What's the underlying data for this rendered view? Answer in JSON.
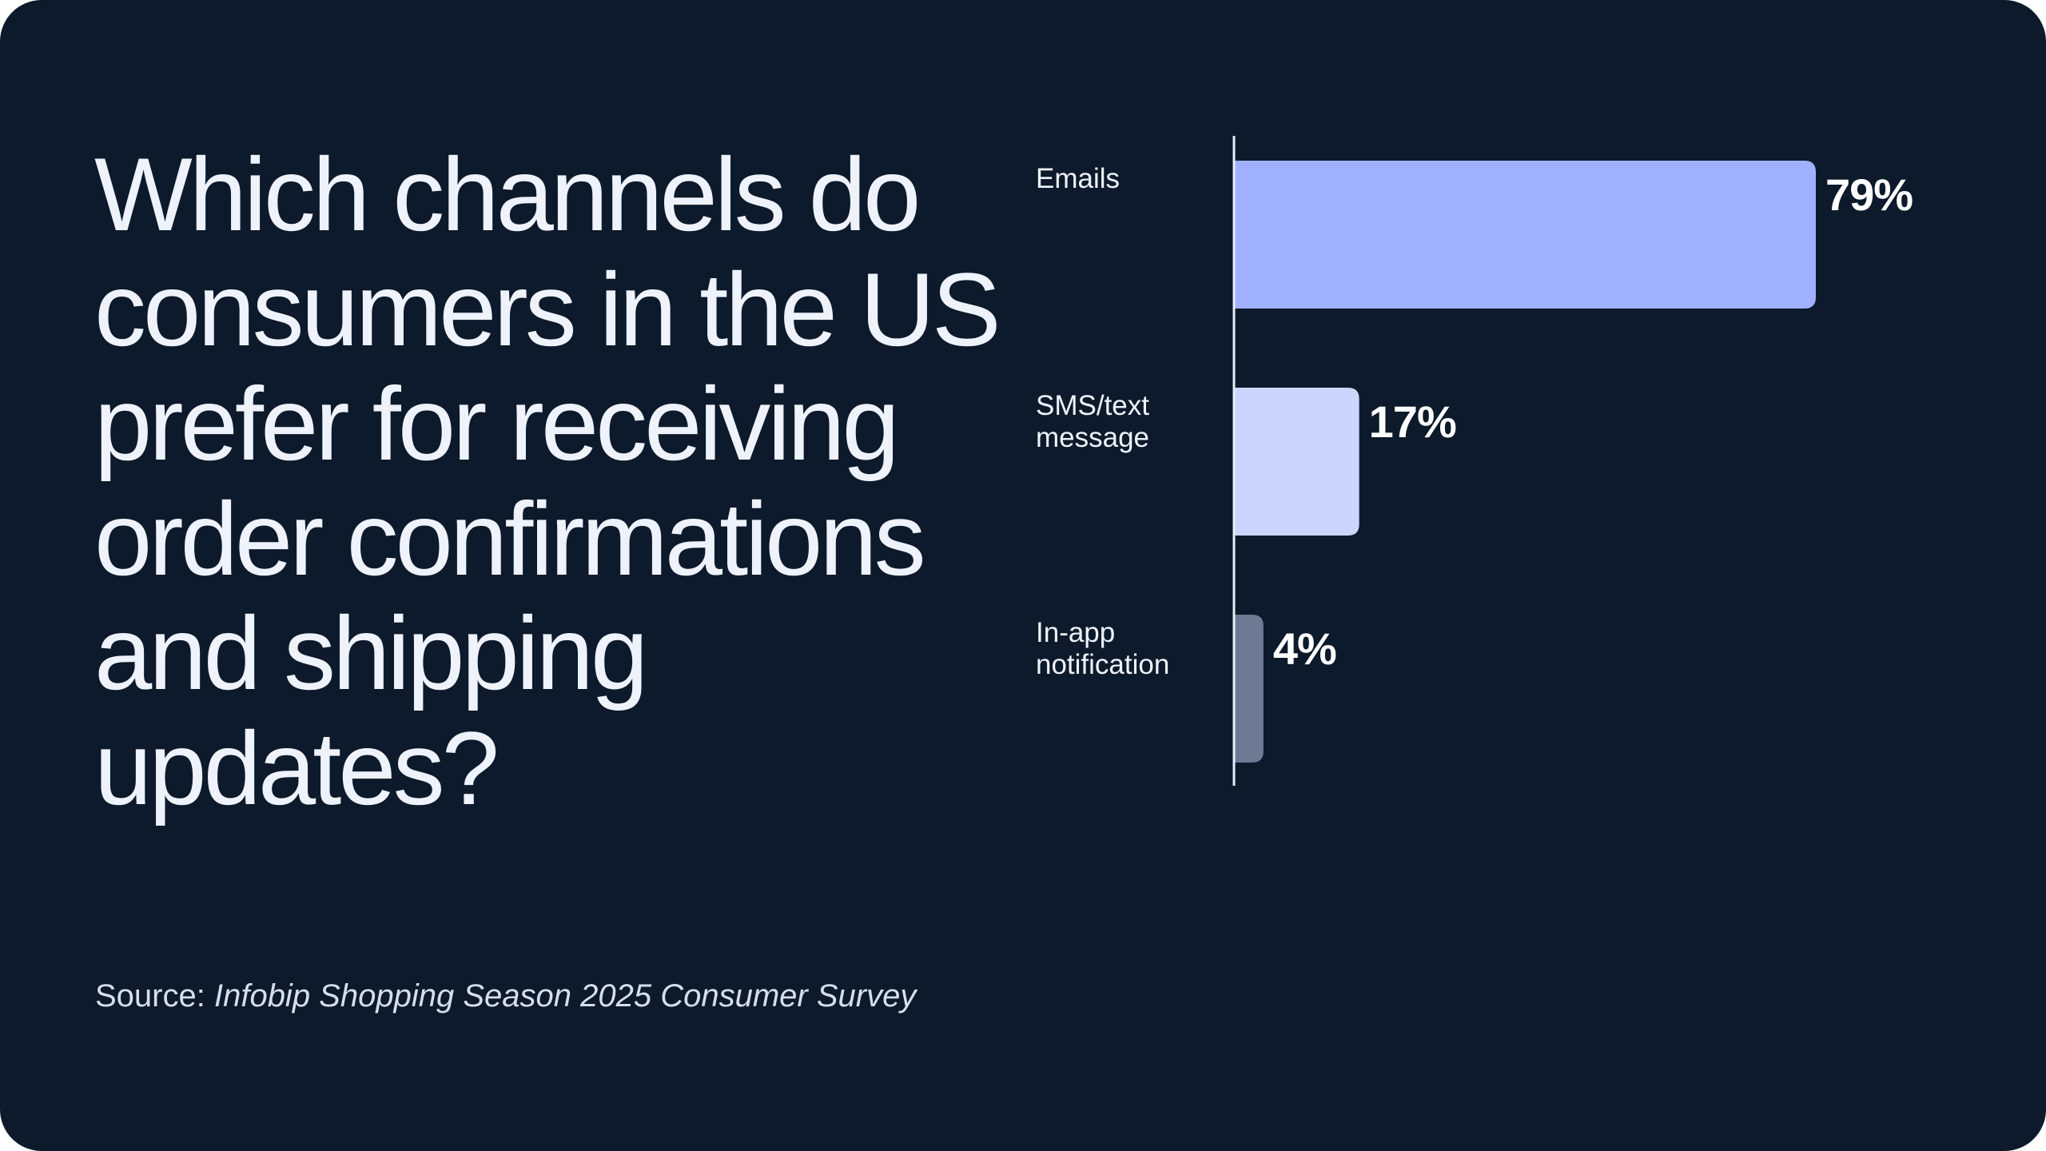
{
  "title": "Which channels do consumers in the US prefer for receiving order confirmations and shipping updates?",
  "source": {
    "prefix": "Source: ",
    "name": "Infobip Shopping Season 2025 Consumer Survey"
  },
  "colors": {
    "background": "#0c1a2b",
    "text": "#eef2fb",
    "axis": "#e8edf8"
  },
  "chart_data": {
    "type": "bar",
    "orientation": "horizontal",
    "categories": [
      [
        "Emails"
      ],
      [
        "SMS/text",
        "message"
      ],
      [
        "In-app",
        "notification"
      ]
    ],
    "values": [
      79,
      17,
      4
    ],
    "value_labels": [
      "79%",
      "17%",
      "4%"
    ],
    "bar_colors": [
      "#9fb1fe",
      "#cbd5fe",
      "#6e7a93"
    ],
    "unit": "%",
    "xlim": [
      0,
      100
    ],
    "grid": false,
    "legend": false
  }
}
